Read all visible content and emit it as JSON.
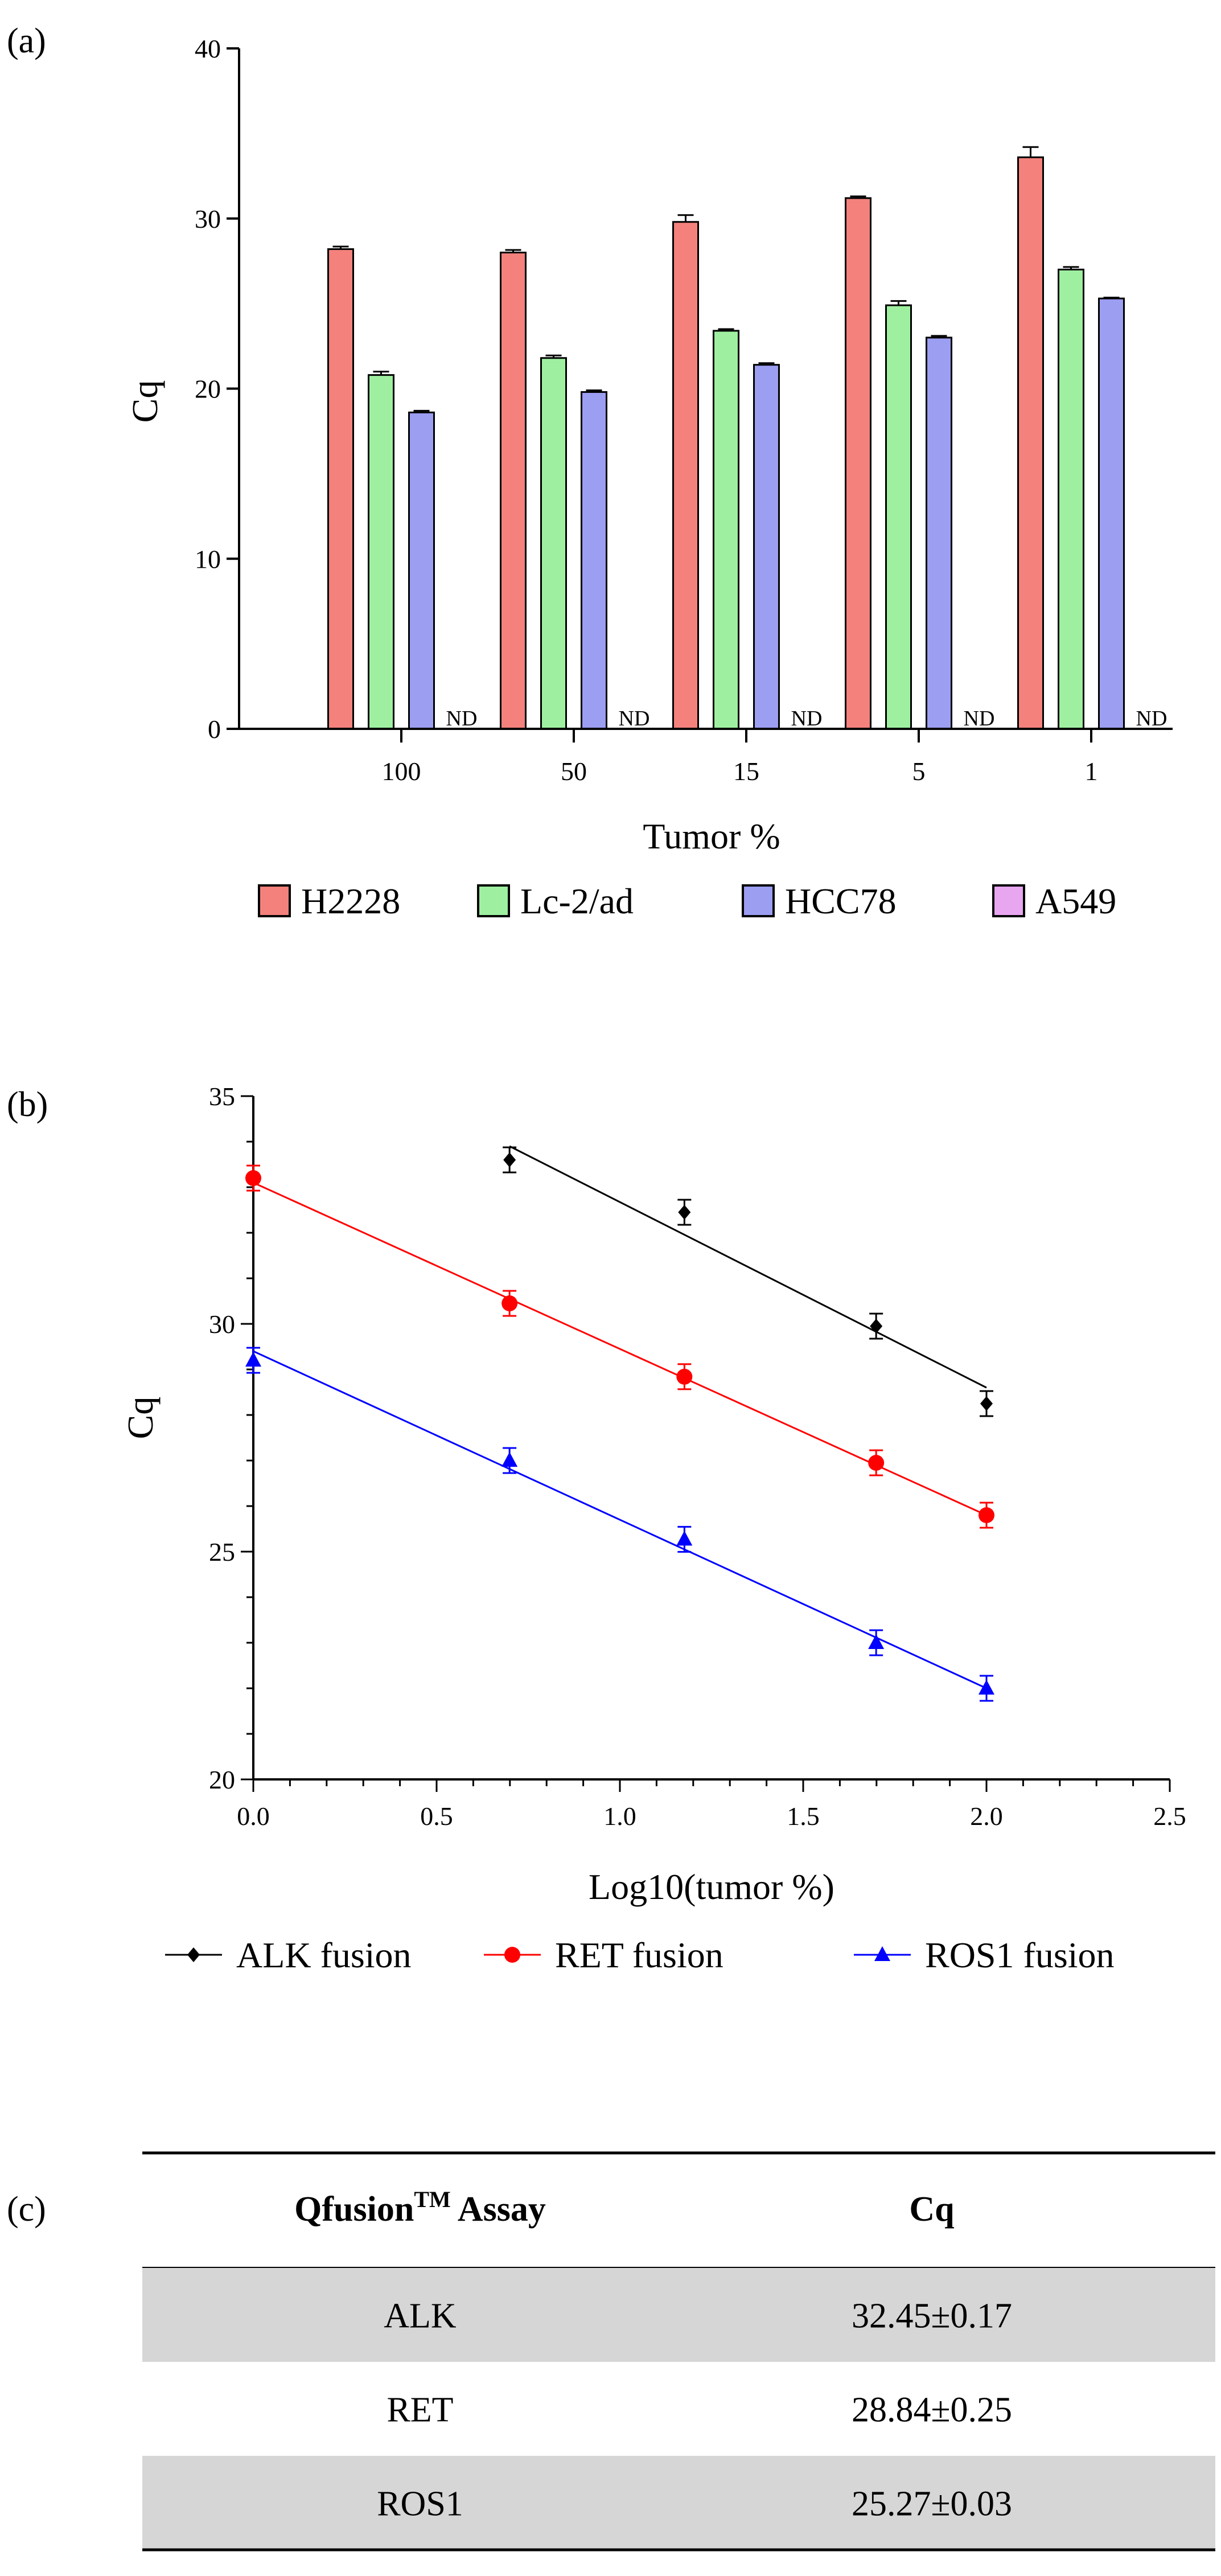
{
  "panels": {
    "a": "(a)",
    "b": "(b)",
    "c": "(c)"
  },
  "chart_data": [
    {
      "type": "bar",
      "panel": "(a)",
      "xlabel": "Tumor %",
      "ylabel": "Cq",
      "ylim": [
        0,
        40
      ],
      "yticks": [
        "0",
        "10",
        "20",
        "30",
        "40"
      ],
      "categories": [
        "100",
        "50",
        "15",
        "5",
        "1"
      ],
      "series": [
        {
          "name": "H2228",
          "color": "#f4817c",
          "values": [
            28.2,
            28.0,
            29.8,
            31.2,
            33.6
          ],
          "errors": [
            0.15,
            0.15,
            0.4,
            0.1,
            0.6
          ]
        },
        {
          "name": "Lc-2/ad",
          "color": "#9ef0a0",
          "values": [
            20.8,
            21.8,
            23.4,
            24.9,
            27.0
          ],
          "errors": [
            0.2,
            0.15,
            0.1,
            0.25,
            0.15
          ]
        },
        {
          "name": "HCC78",
          "color": "#9c9ef2",
          "values": [
            18.6,
            19.8,
            21.4,
            23.0,
            25.3
          ],
          "errors": [
            0.1,
            0.1,
            0.1,
            0.1,
            0.05
          ]
        },
        {
          "name": "A549",
          "color": "#e9a6f0",
          "values": [
            null,
            null,
            null,
            null,
            null
          ],
          "labels": [
            "ND",
            "ND",
            "ND",
            "ND",
            "ND"
          ]
        }
      ],
      "legend_position": "bottom"
    },
    {
      "type": "scatter",
      "panel": "(b)",
      "xlabel": "Log10(tumor %)",
      "ylabel": "Cq",
      "xlim": [
        0,
        2.5
      ],
      "ylim": [
        20,
        35
      ],
      "xticks": [
        "0.0",
        "0.5",
        "1.0",
        "1.5",
        "2.0",
        "2.5"
      ],
      "yticks": [
        "20",
        "25",
        "30",
        "35"
      ],
      "series": [
        {
          "name": "ALK fusion",
          "color": "#000000",
          "marker": "diamond",
          "x": [
            0.699,
            1.176,
            1.699,
            2.0
          ],
          "y": [
            33.6,
            32.45,
            29.95,
            28.25
          ],
          "fit": [
            [
              0.699,
              33.9
            ],
            [
              2.0,
              28.6
            ]
          ]
        },
        {
          "name": "RET fusion",
          "color": "#ff0000",
          "marker": "circle",
          "x": [
            0.0,
            0.699,
            1.176,
            1.699,
            2.0
          ],
          "y": [
            33.2,
            30.45,
            28.84,
            26.95,
            25.8
          ],
          "fit": [
            [
              0.0,
              33.1
            ],
            [
              2.0,
              25.8
            ]
          ]
        },
        {
          "name": "ROS1 fusion",
          "color": "#0000ff",
          "marker": "triangle",
          "x": [
            0.0,
            0.699,
            1.176,
            1.699,
            2.0
          ],
          "y": [
            29.2,
            27.0,
            25.27,
            23.0,
            22.0
          ],
          "fit": [
            [
              0.0,
              29.4
            ],
            [
              2.0,
              22.0
            ]
          ]
        }
      ],
      "legend_position": "bottom"
    },
    {
      "type": "table",
      "panel": "(c)",
      "header": {
        "assay_main": "Qfusion",
        "assay_sup": "TM",
        "assay_tail": " Assay",
        "cq": "Cq"
      },
      "rows": [
        {
          "assay": "ALK",
          "cq": "32.45±0.17",
          "shaded": true
        },
        {
          "assay": "RET",
          "cq": "28.84±0.25",
          "shaded": false
        },
        {
          "assay": "ROS1",
          "cq": "25.27±0.03",
          "shaded": true
        }
      ],
      "shade_color": "#d6d6d6"
    }
  ]
}
